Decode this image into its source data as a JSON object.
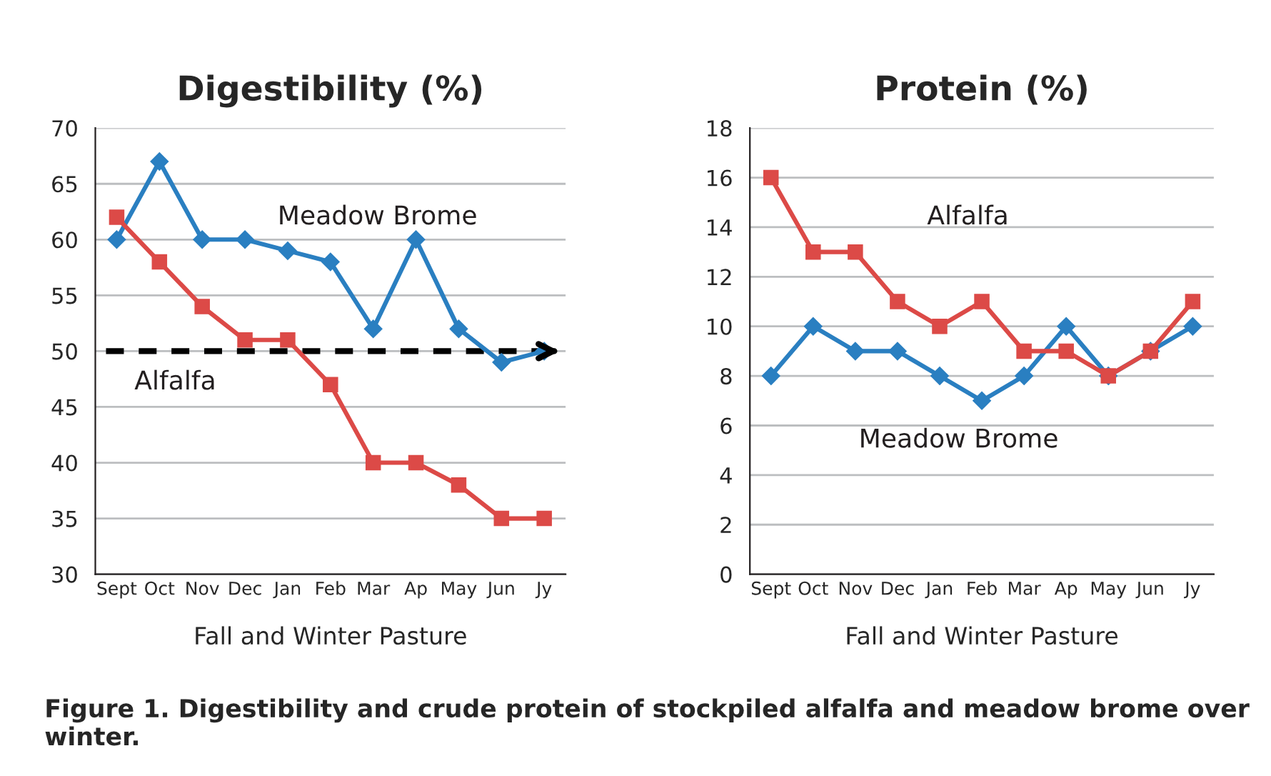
{
  "chart_data": [
    {
      "type": "line",
      "title": "Digestibility (%)",
      "xlabel": "Fall and Winter Pasture",
      "categories": [
        "Sept",
        "Oct",
        "Nov",
        "Dec",
        "Jan",
        "Feb",
        "Mar",
        "Ap",
        "May",
        "Jun",
        "Jy"
      ],
      "series": [
        {
          "name": "Meadow Brome",
          "color": "#2a7fc1",
          "marker": "diamond",
          "values": [
            60,
            67,
            60,
            60,
            59,
            58,
            52,
            60,
            52,
            49,
            50
          ]
        },
        {
          "name": "Alfalfa",
          "color": "#dc4a47",
          "marker": "square",
          "values": [
            62,
            58,
            54,
            51,
            51,
            47,
            40,
            40,
            38,
            35,
            35
          ]
        }
      ],
      "ylim": [
        30,
        70
      ],
      "yticks": [
        30,
        35,
        40,
        45,
        50,
        55,
        60,
        65,
        70
      ],
      "grid": "y",
      "legend": false,
      "ref_lines": [
        {
          "axis": "y",
          "value": 50,
          "color": "#000000",
          "line_style": "dashed"
        }
      ],
      "annotations": [
        "Figure 1. Digestibility and crude protein of stockpiled alfalfa and meadow brome over winter."
      ]
    },
    {
      "type": "line",
      "title": "Protein (%)",
      "xlabel": "Fall and Winter Pasture",
      "categories": [
        "Sept",
        "Oct",
        "Nov",
        "Dec",
        "Jan",
        "Feb",
        "Mar",
        "Ap",
        "May",
        "Jun",
        "Jy"
      ],
      "series": [
        {
          "name": "Meadow Brome",
          "color": "#2a7fc1",
          "marker": "diamond",
          "values": [
            8,
            10,
            9,
            9,
            8,
            7,
            8,
            10,
            8,
            9,
            10
          ]
        },
        {
          "name": "Alfalfa",
          "color": "#dc4a47",
          "marker": "square",
          "values": [
            16,
            13,
            13,
            11,
            10,
            11,
            9,
            9,
            8,
            9,
            11
          ]
        }
      ],
      "ylim": [
        0,
        18
      ],
      "yticks": [
        0,
        2,
        4,
        6,
        8,
        10,
        12,
        14,
        16,
        18
      ],
      "grid": "y",
      "legend": false
    }
  ]
}
